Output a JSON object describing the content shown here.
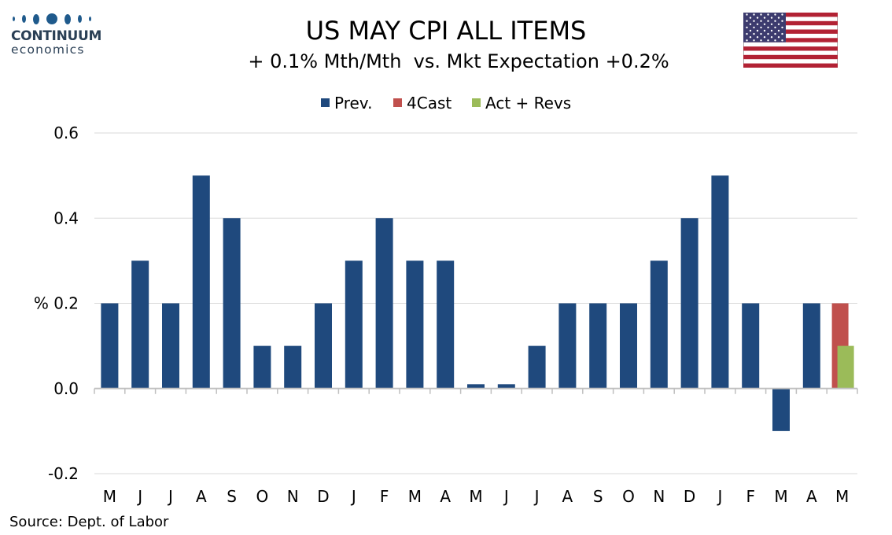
{
  "header": {
    "logo_name": "CONTINUUM",
    "logo_sub": "economics",
    "title": "US MAY CPI ALL ITEMS",
    "subtitle": "+ 0.1% Mth/Mth  vs. Mkt Expectation +0.2%"
  },
  "colors": {
    "prev": "#1f497d",
    "forecast": "#c0504d",
    "actual": "#9bbb59",
    "grid": "#d9d9d9",
    "logo": "#1f5a8c"
  },
  "source": "Source: Dept. of Labor",
  "chart_data": {
    "type": "bar",
    "title": "US MAY CPI ALL ITEMS",
    "subtitle": "+ 0.1% Mth/Mth  vs. Mkt Expectation +0.2%",
    "ylabel": "%",
    "ylim": [
      -0.2,
      0.6
    ],
    "yticks": [
      -0.2,
      0.0,
      0.2,
      0.4,
      0.6
    ],
    "ytick_labels": [
      "-0.2",
      "0.0",
      "% 0.2",
      "0.4",
      "0.6"
    ],
    "grid": true,
    "legend_position": "top-center",
    "categories": [
      "M",
      "J",
      "J",
      "A",
      "S",
      "O",
      "N",
      "D",
      "J",
      "F",
      "M",
      "A",
      "M",
      "J",
      "J",
      "A",
      "S",
      "O",
      "N",
      "D",
      "J",
      "F",
      "M",
      "A",
      "M"
    ],
    "series": [
      {
        "name": "Prev.",
        "color": "#1f497d",
        "values": [
          0.2,
          0.3,
          0.2,
          0.5,
          0.4,
          0.1,
          0.1,
          0.2,
          0.3,
          0.4,
          0.3,
          0.3,
          0.01,
          0.01,
          0.1,
          0.2,
          0.2,
          0.2,
          0.3,
          0.4,
          0.5,
          0.2,
          -0.1,
          0.2,
          null
        ]
      },
      {
        "name": "4Cast",
        "color": "#c0504d",
        "values": [
          null,
          null,
          null,
          null,
          null,
          null,
          null,
          null,
          null,
          null,
          null,
          null,
          null,
          null,
          null,
          null,
          null,
          null,
          null,
          null,
          null,
          null,
          null,
          null,
          0.2
        ]
      },
      {
        "name": "Act + Revs",
        "color": "#9bbb59",
        "values": [
          null,
          null,
          null,
          null,
          null,
          null,
          null,
          null,
          null,
          null,
          null,
          null,
          null,
          null,
          null,
          null,
          null,
          null,
          null,
          null,
          null,
          null,
          null,
          null,
          0.1
        ]
      }
    ]
  }
}
